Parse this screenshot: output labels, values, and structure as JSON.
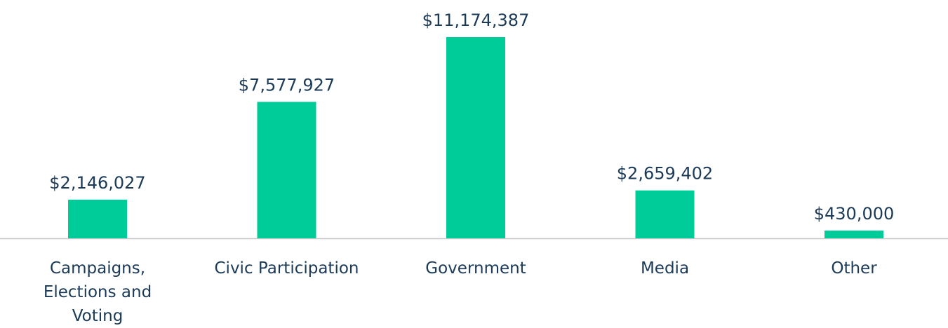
{
  "chart_data": {
    "type": "bar",
    "categories": [
      "Campaigns, Elections and Voting",
      "Civic Participation",
      "Government",
      "Media",
      "Other"
    ],
    "values": [
      2146027,
      7577927,
      11174387,
      2659402,
      430000
    ],
    "value_labels": [
      "$2,146,027",
      "$7,577,927",
      "$11,174,387",
      "$2,659,402",
      "$430,000"
    ],
    "color": "#00cc99"
  }
}
